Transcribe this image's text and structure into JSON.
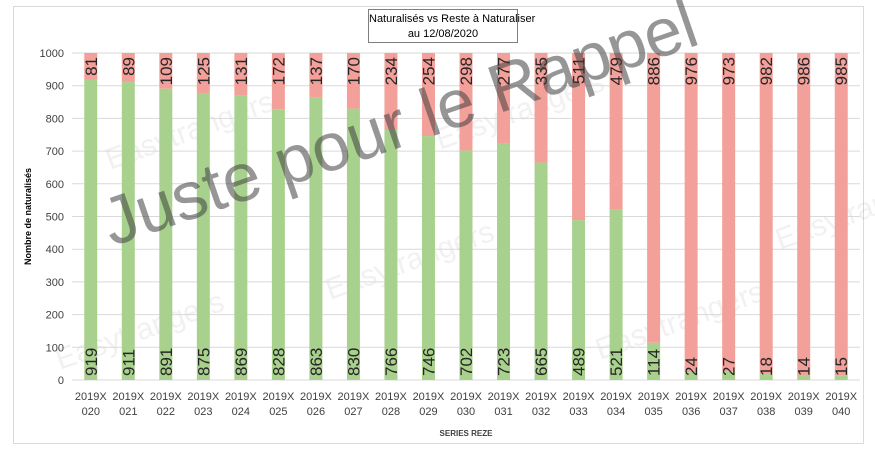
{
  "chart_data": {
    "type": "bar",
    "stacked": true,
    "title_line1": "Naturalisés vs Reste à Naturaliser",
    "title_line2": "au 12/08/2020",
    "xlabel": "SERIES REZE",
    "ylabel": "Nombre de naturalisés",
    "ylim": [
      0,
      1000
    ],
    "yticks": [
      0,
      100,
      200,
      300,
      400,
      500,
      600,
      700,
      800,
      900,
      1000
    ],
    "grid": true,
    "categories": [
      [
        "2019X",
        "020"
      ],
      [
        "2019X",
        "021"
      ],
      [
        "2019X",
        "022"
      ],
      [
        "2019X",
        "023"
      ],
      [
        "2019X",
        "024"
      ],
      [
        "2019X",
        "025"
      ],
      [
        "2019X",
        "026"
      ],
      [
        "2019X",
        "027"
      ],
      [
        "2019X",
        "028"
      ],
      [
        "2019X",
        "029"
      ],
      [
        "2019X",
        "030"
      ],
      [
        "2019X",
        "031"
      ],
      [
        "2019X",
        "032"
      ],
      [
        "2019X",
        "033"
      ],
      [
        "2019X",
        "034"
      ],
      [
        "2019X",
        "035"
      ],
      [
        "2019X",
        "036"
      ],
      [
        "2019X",
        "037"
      ],
      [
        "2019X",
        "038"
      ],
      [
        "2019X",
        "039"
      ],
      [
        "2019X",
        "040"
      ]
    ],
    "series": [
      {
        "values": [
          919,
          911,
          891,
          875,
          869,
          828,
          863,
          830,
          766,
          746,
          702,
          723,
          665,
          489,
          521,
          114,
          24,
          27,
          18,
          14,
          15
        ],
        "color": "#a9d18e"
      },
      {
        "values": [
          81,
          89,
          109,
          125,
          131,
          172,
          137,
          170,
          234,
          254,
          298,
          277,
          335,
          511,
          479,
          886,
          976,
          973,
          982,
          986,
          985
        ],
        "color": "#f4a09a"
      }
    ]
  },
  "watermark": {
    "main_text": "Juste pour le Rappel",
    "brand_text": "Easytrangers"
  },
  "colors": {
    "grid": "#d9d9d9",
    "label_text": "#262626"
  }
}
